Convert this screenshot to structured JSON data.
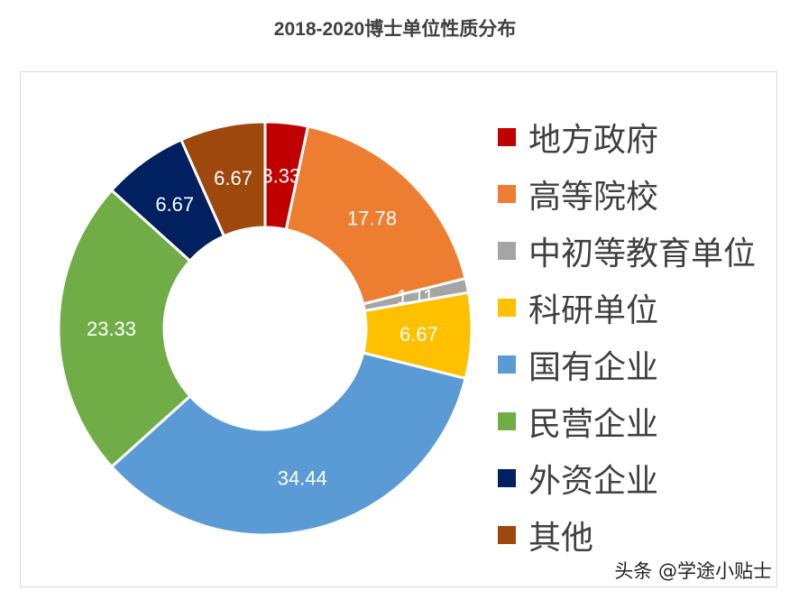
{
  "chart_data": {
    "type": "pie",
    "variant": "donut",
    "title": "2018-2020博士单位性质分布",
    "categories": [
      "地方政府",
      "高等院校",
      "中初等教育单位",
      "科研单位",
      "国有企业",
      "民营企业",
      "外资企业",
      "其他"
    ],
    "values": [
      3.33,
      17.78,
      1.11,
      6.67,
      34.44,
      23.33,
      6.67,
      6.67
    ],
    "labels": [
      "3.33",
      "17.78",
      "1.11",
      "6.67",
      "34.44",
      "23.33",
      "6.67",
      "6.67"
    ],
    "colors": [
      "#C00000",
      "#ED7D31",
      "#A5A5A5",
      "#FFC000",
      "#5B9BD5",
      "#70AD47",
      "#002060",
      "#9E480E"
    ],
    "legend_position": "right"
  },
  "watermark": "头条 @学途小贴士"
}
